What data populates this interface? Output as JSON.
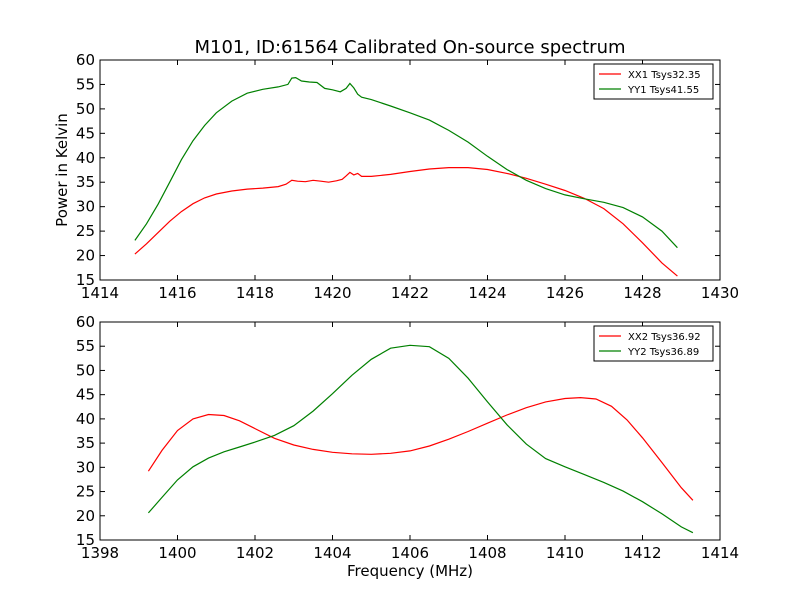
{
  "figure": {
    "title": "M101, ID:61564 Calibrated On-source spectrum"
  },
  "chart_data": [
    {
      "type": "line",
      "ylabel": "Power in Kelvin",
      "xlabel": "",
      "xlim": [
        1414,
        1430
      ],
      "ylim": [
        15,
        60
      ],
      "xticks": [
        1414,
        1416,
        1418,
        1420,
        1422,
        1424,
        1426,
        1428,
        1430
      ],
      "yticks": [
        15,
        20,
        25,
        30,
        35,
        40,
        45,
        50,
        55,
        60
      ],
      "legend_position": "top-right",
      "series": [
        {
          "name": "XX1 Tsys32.35",
          "color": "#ff0000",
          "x": [
            1414.9,
            1415.2,
            1415.5,
            1415.8,
            1416.1,
            1416.4,
            1416.7,
            1417.0,
            1417.4,
            1417.8,
            1418.2,
            1418.6,
            1418.8,
            1418.95,
            1419.1,
            1419.3,
            1419.5,
            1419.7,
            1419.9,
            1420.1,
            1420.25,
            1420.35,
            1420.45,
            1420.55,
            1420.65,
            1420.75,
            1421.0,
            1421.5,
            1422.0,
            1422.5,
            1423.0,
            1423.5,
            1424.0,
            1424.5,
            1425.0,
            1425.5,
            1426.0,
            1426.5,
            1427.0,
            1427.5,
            1428.0,
            1428.5,
            1428.9
          ],
          "y": [
            20.3,
            22.4,
            24.7,
            27.0,
            29.0,
            30.6,
            31.8,
            32.6,
            33.2,
            33.6,
            33.8,
            34.1,
            34.6,
            35.4,
            35.2,
            35.1,
            35.4,
            35.2,
            35.0,
            35.3,
            35.6,
            36.3,
            37.0,
            36.5,
            36.8,
            36.2,
            36.2,
            36.6,
            37.2,
            37.7,
            38.0,
            38.0,
            37.6,
            36.8,
            35.8,
            34.6,
            33.3,
            31.7,
            29.6,
            26.5,
            22.6,
            18.5,
            15.8
          ]
        },
        {
          "name": "YY1 Tsys41.55",
          "color": "#008000",
          "x": [
            1414.9,
            1415.2,
            1415.5,
            1415.8,
            1416.1,
            1416.4,
            1416.7,
            1417.0,
            1417.4,
            1417.8,
            1418.2,
            1418.6,
            1418.85,
            1418.95,
            1419.05,
            1419.2,
            1419.4,
            1419.6,
            1419.8,
            1420.0,
            1420.2,
            1420.35,
            1420.45,
            1420.55,
            1420.65,
            1420.75,
            1421.0,
            1421.5,
            1422.0,
            1422.5,
            1423.0,
            1423.5,
            1424.0,
            1424.5,
            1425.0,
            1425.5,
            1426.0,
            1426.5,
            1427.0,
            1427.5,
            1428.0,
            1428.5,
            1428.9
          ],
          "y": [
            23.1,
            26.5,
            30.5,
            35.0,
            39.6,
            43.5,
            46.6,
            49.2,
            51.6,
            53.2,
            54.0,
            54.5,
            55.0,
            56.3,
            56.4,
            55.7,
            55.5,
            55.4,
            54.2,
            53.9,
            53.5,
            54.2,
            55.2,
            54.3,
            53.0,
            52.4,
            51.9,
            50.6,
            49.2,
            47.7,
            45.6,
            43.2,
            40.3,
            37.6,
            35.4,
            33.7,
            32.4,
            31.6,
            30.9,
            29.8,
            27.9,
            25.0,
            21.6
          ]
        }
      ]
    },
    {
      "type": "line",
      "ylabel": "",
      "xlabel": "Frequency (MHz)",
      "xlim": [
        1398,
        1414
      ],
      "ylim": [
        15,
        60
      ],
      "xticks": [
        1398,
        1400,
        1402,
        1404,
        1406,
        1408,
        1410,
        1412,
        1414
      ],
      "yticks": [
        15,
        20,
        25,
        30,
        35,
        40,
        45,
        50,
        55,
        60
      ],
      "legend_position": "top-right",
      "series": [
        {
          "name": "XX2 Tsys36.92",
          "color": "#ff0000",
          "x": [
            1399.25,
            1399.6,
            1400.0,
            1400.4,
            1400.8,
            1401.2,
            1401.6,
            1402.0,
            1402.5,
            1403.0,
            1403.5,
            1404.0,
            1404.5,
            1405.0,
            1405.5,
            1406.0,
            1406.5,
            1407.0,
            1407.5,
            1408.0,
            1408.5,
            1409.0,
            1409.5,
            1410.0,
            1410.4,
            1410.8,
            1411.2,
            1411.6,
            1412.0,
            1412.5,
            1413.0,
            1413.3
          ],
          "y": [
            29.2,
            33.5,
            37.6,
            40.0,
            40.9,
            40.7,
            39.6,
            38.0,
            36.0,
            34.6,
            33.7,
            33.1,
            32.8,
            32.7,
            32.9,
            33.4,
            34.4,
            35.8,
            37.4,
            39.1,
            40.8,
            42.3,
            43.5,
            44.2,
            44.4,
            44.1,
            42.6,
            39.8,
            36.1,
            31.0,
            25.8,
            23.2
          ]
        },
        {
          "name": "YY2 Tsys36.89",
          "color": "#008000",
          "x": [
            1399.25,
            1399.6,
            1400.0,
            1400.4,
            1400.8,
            1401.2,
            1401.6,
            1402.0,
            1402.5,
            1403.0,
            1403.5,
            1404.0,
            1404.5,
            1405.0,
            1405.5,
            1406.0,
            1406.5,
            1407.0,
            1407.5,
            1408.0,
            1408.5,
            1409.0,
            1409.5,
            1410.0,
            1410.5,
            1411.0,
            1411.5,
            1412.0,
            1412.5,
            1413.0,
            1413.3
          ],
          "y": [
            20.6,
            23.8,
            27.4,
            30.1,
            31.9,
            33.2,
            34.2,
            35.2,
            36.6,
            38.6,
            41.6,
            45.2,
            49.0,
            52.3,
            54.6,
            55.2,
            54.9,
            52.5,
            48.4,
            43.5,
            38.8,
            34.8,
            31.8,
            30.1,
            28.5,
            26.9,
            25.1,
            22.9,
            20.4,
            17.7,
            16.5
          ]
        }
      ]
    }
  ]
}
